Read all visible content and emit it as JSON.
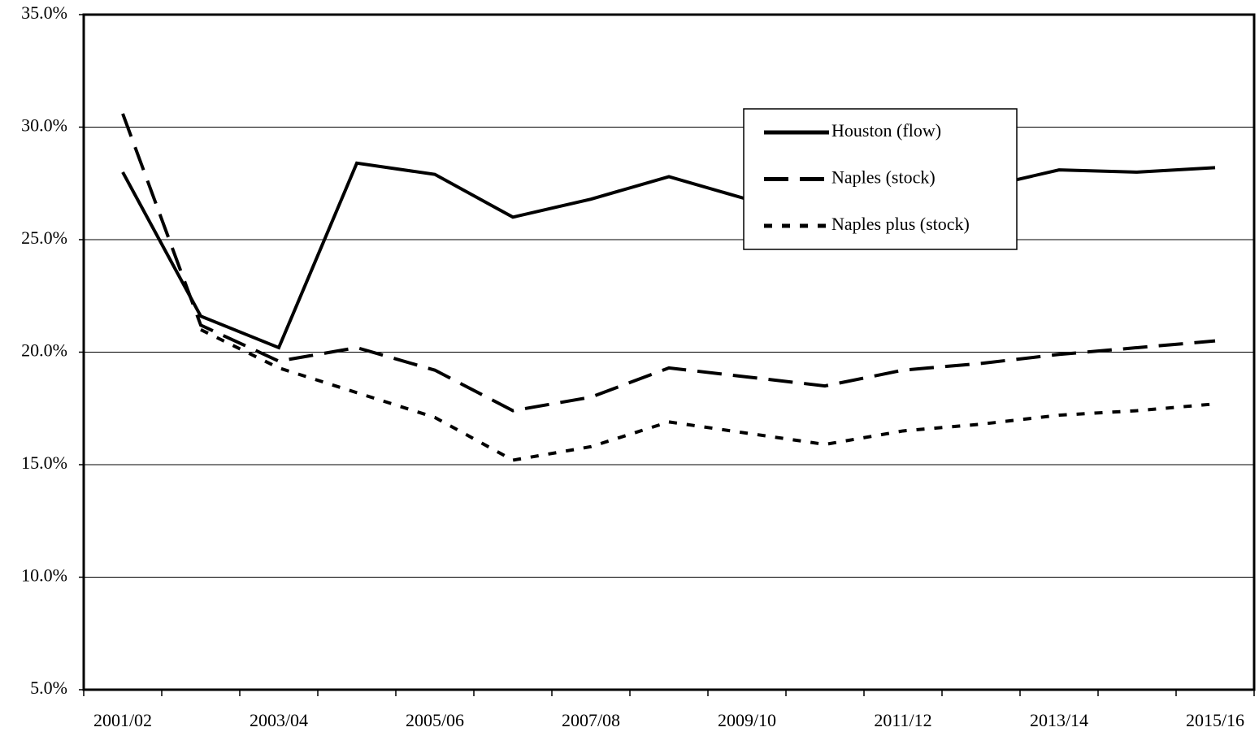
{
  "chart_data": {
    "type": "line",
    "categories": [
      "2001/02",
      null,
      "2003/04",
      null,
      "2005/06",
      null,
      "2007/08",
      null,
      "2009/10",
      null,
      "2011/12",
      null,
      "2013/14",
      null,
      "2015/16"
    ],
    "series": [
      {
        "name": "Houston (flow)",
        "color": "#000000",
        "dash": "solid",
        "values": [
          28.0,
          21.6,
          20.2,
          28.4,
          27.9,
          26.0,
          26.8,
          27.8,
          26.8,
          27.0,
          27.2,
          27.3,
          28.1,
          28.0,
          28.2
        ]
      },
      {
        "name": "Naples (stock)",
        "color": "#000000",
        "dash": "dashed",
        "values": [
          30.6,
          21.2,
          19.6,
          20.2,
          19.2,
          17.4,
          18.0,
          19.3,
          18.9,
          18.5,
          19.2,
          19.5,
          19.9,
          20.2,
          20.5
        ]
      },
      {
        "name": "Naples plus (stock)",
        "color": "#000000",
        "dash": "dotted",
        "values": [
          null,
          21.0,
          19.3,
          18.2,
          17.1,
          15.2,
          15.8,
          16.9,
          16.4,
          15.9,
          16.5,
          16.8,
          17.2,
          17.4,
          17.7
        ]
      }
    ],
    "ylim": [
      5,
      35
    ],
    "yticks": [
      {
        "value": 5,
        "label": "5.0%"
      },
      {
        "value": 10,
        "label": "10.0%"
      },
      {
        "value": 15,
        "label": "15.0%"
      },
      {
        "value": 20,
        "label": "20.0%"
      },
      {
        "value": 25,
        "label": "25.0%"
      },
      {
        "value": 30,
        "label": "30.0%"
      },
      {
        "value": 35,
        "label": "35.0%"
      }
    ],
    "grid": true,
    "legend": "top-right"
  }
}
